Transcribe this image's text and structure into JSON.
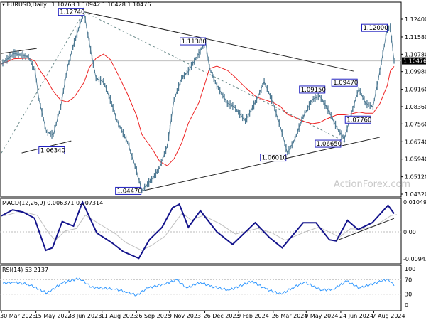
{
  "header": {
    "symbol": "EURUSD,Daily",
    "ohlc": "1.10763 1.10942 1.10428 1.10476"
  },
  "watermark": "ActionForex.com",
  "colors": {
    "price": "#4f7a93",
    "ma": "#ee2222",
    "macd": "#14148c",
    "signal": "#c0c0c0",
    "rsi": "#3399ff",
    "label_border": "#2020c0",
    "trendline": "#000000"
  },
  "chart_data": [
    {
      "type": "line",
      "panel": "price",
      "symbol": "EURUSD",
      "timeframe": "Daily",
      "last_price": "1.10476",
      "ylim": [
        1.0432,
        1.124
      ],
      "y_ticks": [
        "1.12400",
        "1.11580",
        "1.10780",
        "1.09980",
        "1.09160",
        "1.08360",
        "1.07560",
        "1.06740",
        "1.05940",
        "1.05120",
        "1.04320"
      ],
      "x_ticks": [
        "30 Mar 2023",
        "15 May 2023",
        "28 Jun 2023",
        "11 Aug 2023",
        "26 Sep 2023",
        "9 Nov 2023",
        "26 Dec 2023",
        "9 Feb 2024",
        "26 Mar 2024",
        "9 May 2024",
        "24 Jun 2024",
        "7 Aug 2024"
      ],
      "x_tick_dates": [
        "2023-03-30",
        "2023-05-15",
        "2023-06-28",
        "2023-08-11",
        "2023-09-26",
        "2023-11-09",
        "2023-12-26",
        "2024-02-09",
        "2024-03-26",
        "2024-05-09",
        "2024-06-24",
        "2024-08-07"
      ],
      "xlim": [
        "2023-03-30",
        "2024-09-03"
      ],
      "series": [
        {
          "x": [
            "2023-03-30",
            "2023-04-16",
            "2023-05-05",
            "2023-05-14",
            "2023-05-19",
            "2023-05-29",
            "2023-06-07",
            "2023-06-17",
            "2023-06-26",
            "2023-07-05",
            "2023-07-18",
            "2023-07-25",
            "2023-08-03",
            "2023-08-13",
            "2023-08-22",
            "2023-08-31",
            "2023-09-14",
            "2023-09-26",
            "2023-10-03",
            "2023-10-18",
            "2023-10-27",
            "2023-11-06",
            "2023-11-15",
            "2023-11-25",
            "2023-12-04",
            "2023-12-18",
            "2023-12-27",
            "2024-01-01",
            "2024-01-11",
            "2024-01-25",
            "2024-02-03",
            "2024-02-18",
            "2024-03-04",
            "2024-03-14",
            "2024-03-26",
            "2024-04-05",
            "2024-04-14",
            "2024-04-24",
            "2024-05-03",
            "2024-05-17",
            "2024-05-27",
            "2024-06-05",
            "2024-06-19",
            "2024-06-29",
            "2024-07-08",
            "2024-07-18",
            "2024-07-27",
            "2024-08-06",
            "2024-08-15",
            "2024-08-25",
            "2024-08-29",
            "2024-09-03"
          ],
          "y": [
            1.1033,
            1.1082,
            1.1066,
            1.1,
            1.0869,
            1.0721,
            1.0705,
            1.0836,
            1.1017,
            1.1132,
            1.1274,
            1.1132,
            1.0967,
            1.0951,
            1.0869,
            1.077,
            1.0672,
            1.054,
            1.0448,
            1.0507,
            1.0557,
            1.0655,
            1.0869,
            1.0967,
            1.1,
            1.1082,
            1.1138,
            1.1017,
            1.0934,
            1.0852,
            1.0836,
            1.077,
            1.0869,
            1.0951,
            1.0852,
            1.0737,
            1.0622,
            1.0687,
            1.0775,
            1.0869,
            1.0885,
            1.0836,
            1.0737,
            1.0687,
            1.0803,
            1.0918,
            1.0852,
            1.0836,
            1.1,
            1.1197,
            1.12,
            1.10476
          ]
        }
      ],
      "annotations": [
        {
          "text": "1.12740",
          "date": "2023-07-18",
          "price": 1.1274
        },
        {
          "text": "1.11380",
          "date": "2023-12-27",
          "price": 1.1138
        },
        {
          "text": "1.06340",
          "date": "2023-06-22",
          "price": 1.0634
        },
        {
          "text": "1.04470",
          "date": "2023-10-02",
          "price": 1.0447
        },
        {
          "text": "1.06010",
          "date": "2024-04-12",
          "price": 1.0601
        },
        {
          "text": "1.06650",
          "date": "2024-06-24",
          "price": 1.0665
        },
        {
          "text": "1.07760",
          "date": "2024-08-03",
          "price": 1.0776
        },
        {
          "text": "1.09150",
          "date": "2024-06-03",
          "price": 1.0915
        },
        {
          "text": "1.09470",
          "date": "2024-07-16",
          "price": 1.0947
        },
        {
          "text": "1.12000",
          "date": "2024-08-25",
          "price": 1.12
        }
      ],
      "trendlines": [
        {
          "from": [
            "2023-03-30",
            1.1082
          ],
          "to": [
            "2023-05-16",
            1.1105
          ],
          "style": "solid"
        },
        {
          "from": [
            "2023-04-26",
            1.0622
          ],
          "to": [
            "2023-07-01",
            1.0678
          ],
          "style": "solid"
        },
        {
          "from": [
            "2023-07-18",
            1.1274
          ],
          "to": [
            "2024-07-11",
            1.1
          ],
          "style": "solid"
        },
        {
          "from": [
            "2023-10-05",
            1.0448
          ],
          "to": [
            "2024-08-15",
            1.0695
          ],
          "style": "solid"
        },
        {
          "from": [
            "2023-03-30",
            1.0622
          ],
          "to": [
            "2023-07-18",
            1.1274
          ],
          "style": "dashed"
        },
        {
          "from": [
            "2023-07-18",
            1.1274
          ],
          "to": [
            "2024-07-01",
            1.0672
          ],
          "style": "dashed"
        }
      ]
    },
    {
      "type": "line",
      "panel": "macd",
      "title": "MACD(12,26,9) 0.006371 0.007314",
      "y_ticks": [
        "0.01049",
        "0.00",
        "-0.009435"
      ],
      "ylim": [
        -0.009435,
        0.01049
      ],
      "series": [
        {
          "x": [
            "2023-03-30",
            "2023-04-14",
            "2023-04-28",
            "2023-05-13",
            "2023-05-28",
            "2023-06-06",
            "2023-06-19",
            "2023-07-04",
            "2023-07-16",
            "2023-08-04",
            "2023-08-25",
            "2023-09-08",
            "2023-09-29",
            "2023-10-13",
            "2023-10-30",
            "2023-11-13",
            "2023-11-22",
            "2023-12-04",
            "2023-12-20",
            "2024-01-11",
            "2024-02-01",
            "2024-03-02",
            "2024-03-21",
            "2024-04-07",
            "2024-05-05",
            "2024-05-22",
            "2024-06-09",
            "2024-06-18",
            "2024-07-03",
            "2024-07-17",
            "2024-08-05",
            "2024-08-26",
            "2024-09-03"
          ],
          "y": [
            0.0056,
            0.0077,
            0.0069,
            0.0048,
            -0.0065,
            -0.0056,
            0.0036,
            0.002,
            0.0105,
            -0.0004,
            -0.004,
            -0.0069,
            -0.0093,
            -0.0028,
            0.0016,
            0.0085,
            0.0097,
            0.0016,
            0.0074,
            0.0,
            -0.0044,
            0.0032,
            -0.002,
            -0.0056,
            0.0032,
            0.0032,
            -0.0028,
            -0.0032,
            0.004,
            0.0008,
            0.0032,
            0.0093,
            0.0064
          ]
        }
      ],
      "trendlines": [
        {
          "from": [
            "2024-06-18",
            -0.0031
          ],
          "to": [
            "2024-09-03",
            0.0047
          ],
          "style": "solid"
        }
      ]
    },
    {
      "type": "line",
      "panel": "rsi",
      "title": "RSI(14) 53.2137",
      "y_ticks": [
        "100",
        "70",
        "30",
        "0"
      ],
      "ylim": [
        0,
        100
      ],
      "levels": [
        70,
        30
      ],
      "series": [
        {
          "x": [
            "2023-04-01",
            "2023-04-15",
            "2023-05-04",
            "2023-05-30",
            "2023-06-18",
            "2023-07-12",
            "2023-07-28",
            "2023-08-27",
            "2023-09-10",
            "2023-09-26",
            "2023-10-11",
            "2023-11-01",
            "2023-11-19",
            "2023-12-02",
            "2023-12-20",
            "2024-01-02",
            "2024-01-27",
            "2024-02-27",
            "2024-03-16",
            "2024-04-06",
            "2024-04-20",
            "2024-05-07",
            "2024-05-30",
            "2024-06-14",
            "2024-07-02",
            "2024-07-19",
            "2024-08-26",
            "2024-09-03"
          ],
          "y": [
            60,
            63,
            58,
            33,
            60,
            74,
            49,
            44,
            38,
            27,
            47,
            58,
            69,
            47,
            63,
            52,
            41,
            66,
            44,
            30,
            47,
            63,
            41,
            44,
            66,
            47,
            72,
            53.2
          ]
        }
      ]
    }
  ]
}
